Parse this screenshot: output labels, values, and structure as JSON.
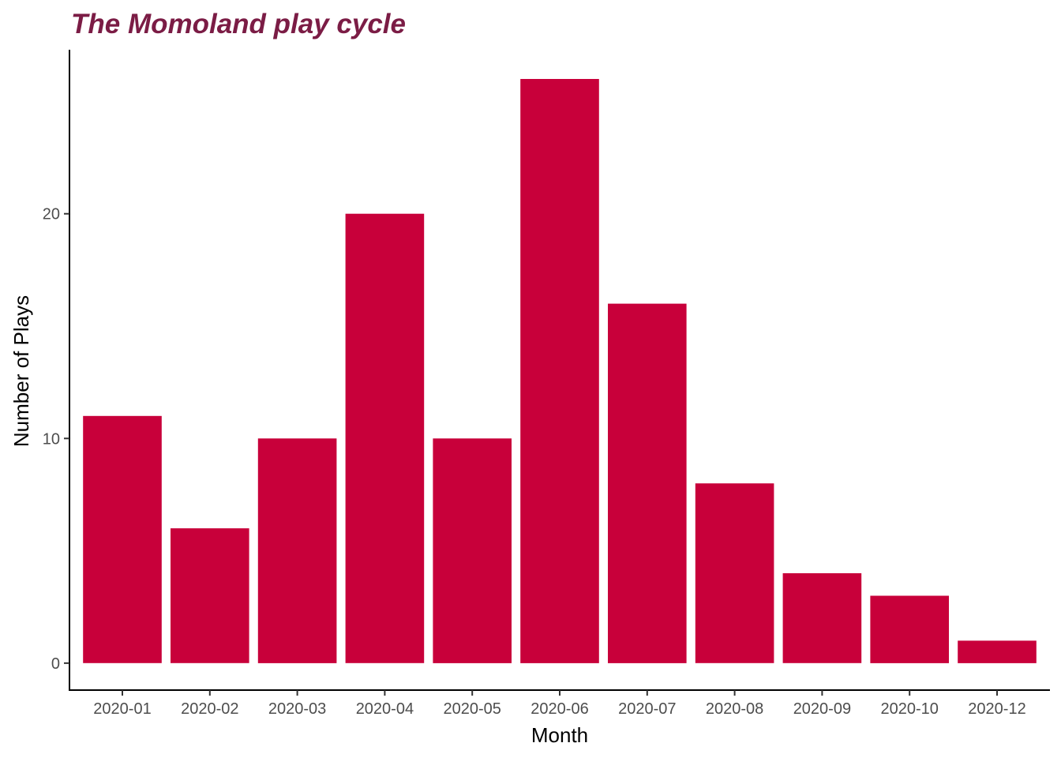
{
  "chart_data": {
    "type": "bar",
    "title": "The Momoland play cycle",
    "xlabel": "Month",
    "ylabel": "Number of Plays",
    "categories": [
      "2020-01",
      "2020-02",
      "2020-03",
      "2020-04",
      "2020-05",
      "2020-06",
      "2020-07",
      "2020-08",
      "2020-09",
      "2020-10",
      "2020-12"
    ],
    "values": [
      11,
      6,
      10,
      20,
      10,
      26,
      16,
      8,
      4,
      3,
      1
    ],
    "ylim": [
      -1.2,
      27.3
    ],
    "yticks": [
      0,
      10,
      20
    ],
    "grid": false,
    "legend": "none",
    "colors": {
      "bar": "#c8003a",
      "title": "#7b1c45",
      "axis": "#000000"
    }
  }
}
